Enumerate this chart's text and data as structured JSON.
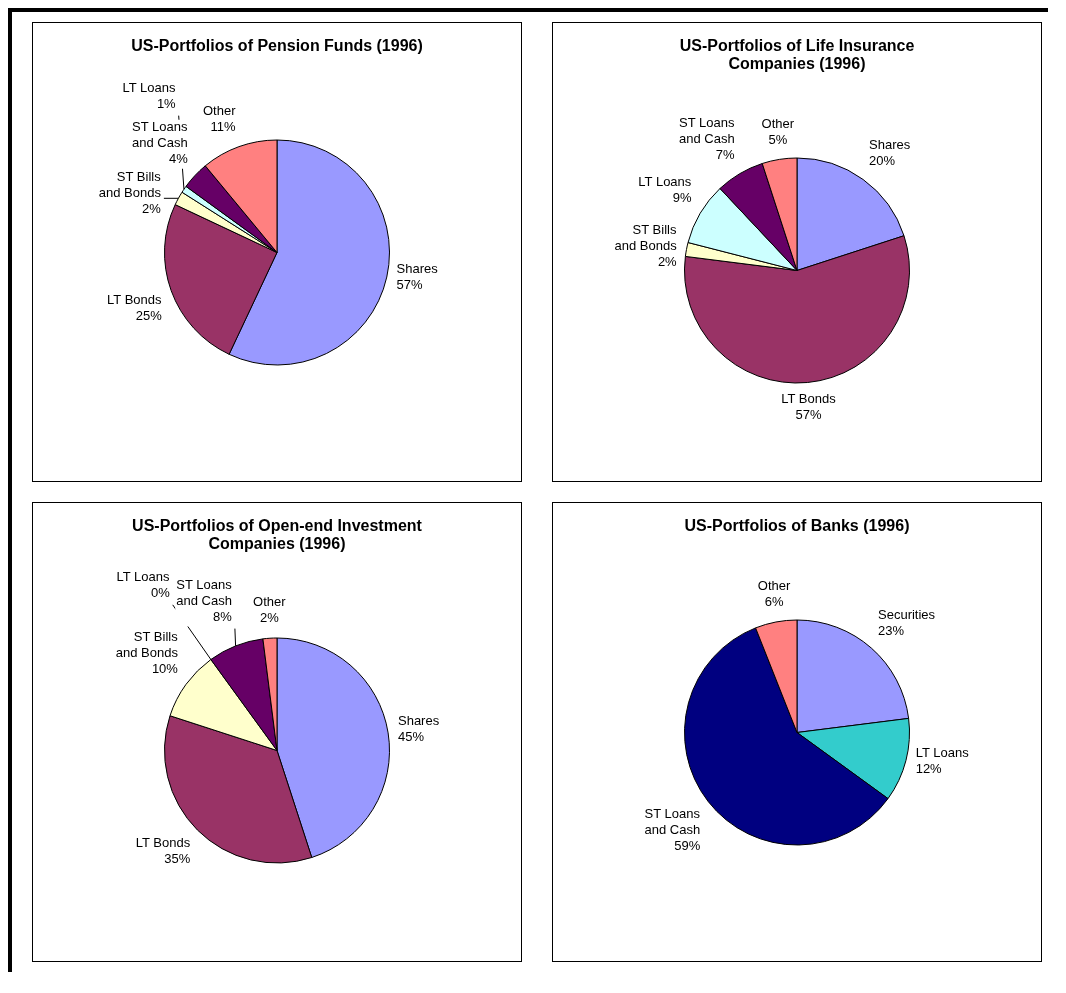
{
  "chart_data": [
    {
      "type": "pie",
      "title": "US-Portfolios of Pension Funds (1996)",
      "categories": [
        "Shares",
        "LT Bonds",
        "ST Bills and Bonds",
        "LT Loans",
        "ST Loans and Cash",
        "Other"
      ],
      "values": [
        57,
        25,
        2,
        1,
        4,
        11
      ],
      "colors": [
        "#9999ff",
        "#993366",
        "#ffffcc",
        "#ccffff",
        "#660066",
        "#ff8080"
      ],
      "value_labels": [
        "57%",
        "25%",
        "2%",
        "1%",
        "4%",
        "11%"
      ]
    },
    {
      "type": "pie",
      "title": "US-Portfolios of Life Insurance Companies (1996)",
      "categories": [
        "Shares",
        "LT Bonds",
        "ST Bills and Bonds",
        "LT Loans",
        "ST Loans and Cash",
        "Other"
      ],
      "values": [
        20,
        57,
        2,
        9,
        7,
        5
      ],
      "colors": [
        "#9999ff",
        "#993366",
        "#ffffcc",
        "#ccffff",
        "#660066",
        "#ff8080"
      ],
      "value_labels": [
        "20%",
        "57%",
        "2%",
        "9%",
        "7%",
        "5%"
      ]
    },
    {
      "type": "pie",
      "title": "US-Portfolios of Open-end Investment Companies (1996)",
      "categories": [
        "Shares",
        "LT Bonds",
        "ST Bills and Bonds",
        "LT Loans",
        "ST Loans and Cash",
        "Other"
      ],
      "values": [
        45,
        35,
        10,
        0,
        8,
        2
      ],
      "colors": [
        "#9999ff",
        "#993366",
        "#ffffcc",
        "#ccffff",
        "#660066",
        "#ff8080"
      ],
      "value_labels": [
        "45%",
        "35%",
        "10%",
        "0%",
        "8%",
        "2%"
      ]
    },
    {
      "type": "pie",
      "title": "US-Portfolios of Banks (1996)",
      "categories": [
        "Securities",
        "LT Loans",
        "ST Loans and Cash",
        "Other"
      ],
      "values": [
        23,
        12,
        59,
        6
      ],
      "colors": [
        "#9999ff",
        "#33cccc",
        "#000080",
        "#ff8080"
      ],
      "value_labels": [
        "23%",
        "12%",
        "59%",
        "6%"
      ]
    }
  ]
}
